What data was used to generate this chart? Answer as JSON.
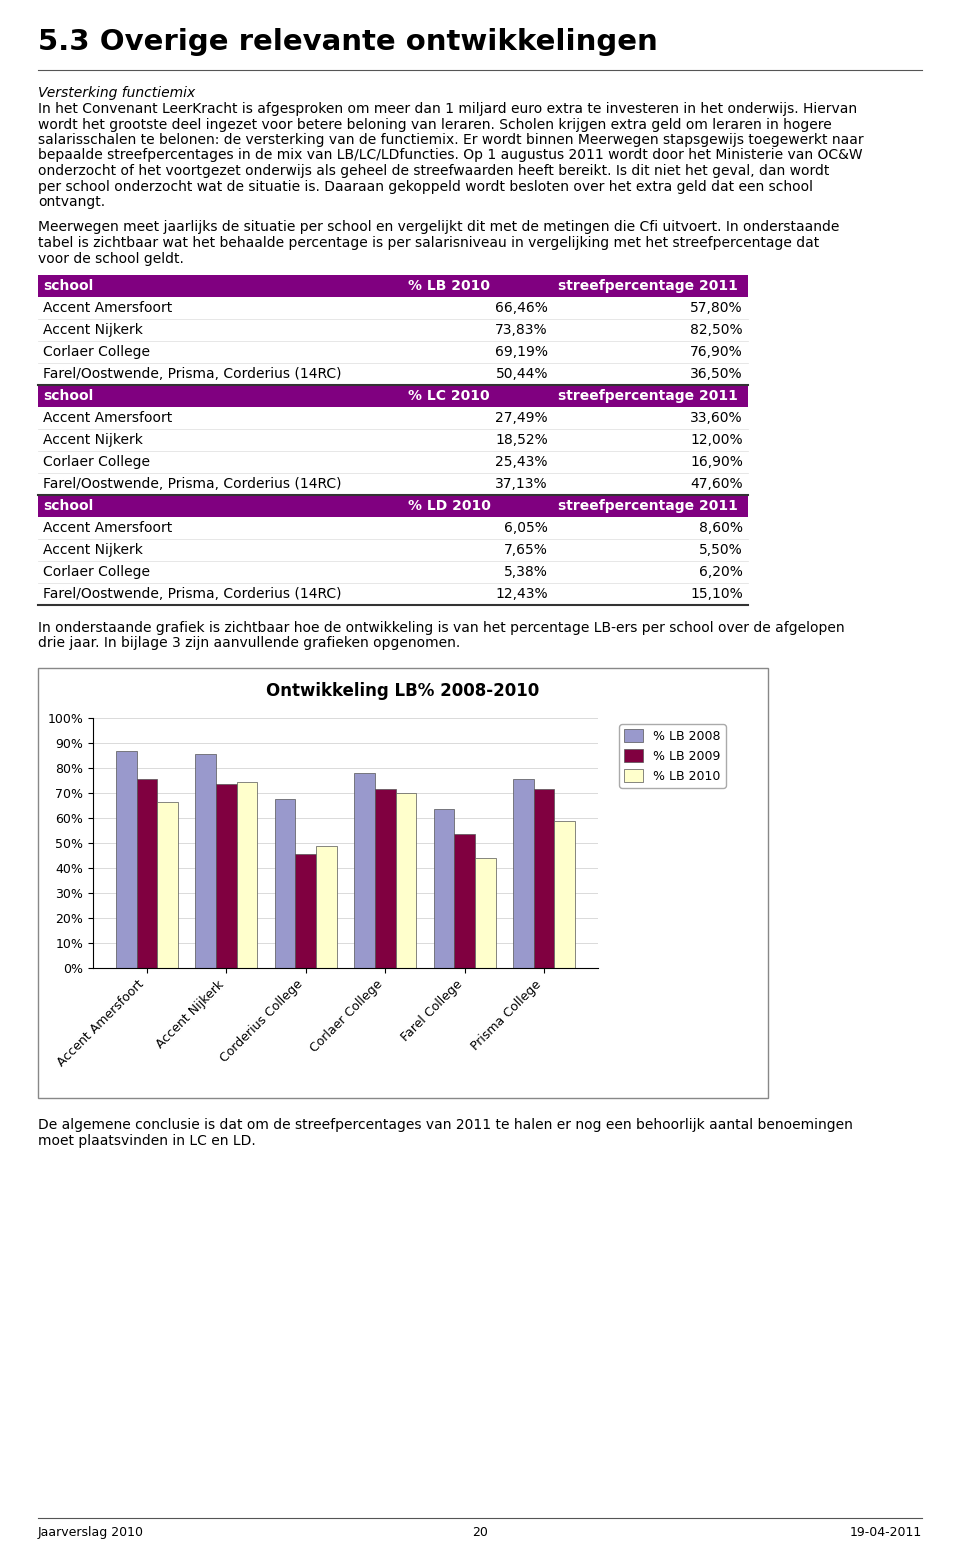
{
  "title": "5.3 Overige relevante ontwikkelingen",
  "section_italic": "Versterking functiemix",
  "paragraph1": "In het Convenant LeerKracht is afgesproken om meer dan 1 miljard euro extra te investeren in het onderwijs. Hiervan wordt het grootste deel ingezet voor betere beloning van leraren. Scholen krijgen extra geld om leraren in hogere salarisschalen te belonen: de versterking van de functiemix. Er wordt binnen Meerwegen stapsgewijs toegewerkt naar bepaalde streefpercentages in de mix van LB/LC/LDfuncties. Op 1 augustus 2011 wordt door het Ministerie van OC&W onderzocht of het voortgezet onderwijs als geheel de streefwaarden heeft bereikt. Is dit niet het geval, dan wordt per school onderzocht wat de situatie is. Daaraan gekoppeld wordt besloten over het extra geld dat een school ontvangt.",
  "paragraph2": "Meerwegen meet jaarlijks de situatie per school en vergelijkt dit met de metingen die Cfi uitvoert.\nIn onderstaande tabel is zichtbaar wat het behaalde percentage is per salarisniveau in vergelijking met\nhet streefpercentage dat voor de school geldt.",
  "tables": [
    {
      "col1": "school",
      "col2": "% LB 2010",
      "col3": "streefpercentage 2011",
      "rows": [
        [
          "Accent Amersfoort",
          "66,46%",
          "57,80%"
        ],
        [
          "Accent Nijkerk",
          "73,83%",
          "82,50%"
        ],
        [
          "Corlaer College",
          "69,19%",
          "76,90%"
        ],
        [
          "Farel/Oostwende, Prisma, Corderius (14RC)",
          "50,44%",
          "36,50%"
        ]
      ]
    },
    {
      "col1": "school",
      "col2": "% LC 2010",
      "col3": "streefpercentage 2011",
      "rows": [
        [
          "Accent Amersfoort",
          "27,49%",
          "33,60%"
        ],
        [
          "Accent Nijkerk",
          "18,52%",
          "12,00%"
        ],
        [
          "Corlaer College",
          "25,43%",
          "16,90%"
        ],
        [
          "Farel/Oostwende, Prisma, Corderius (14RC)",
          "37,13%",
          "47,60%"
        ]
      ]
    },
    {
      "col1": "school",
      "col2": "% LD 2010",
      "col3": "streefpercentage 2011",
      "rows": [
        [
          "Accent Amersfoort",
          "6,05%",
          "8,60%"
        ],
        [
          "Accent Nijkerk",
          "7,65%",
          "5,50%"
        ],
        [
          "Corlaer College",
          "5,38%",
          "6,20%"
        ],
        [
          "Farel/Oostwende, Prisma, Corderius (14RC)",
          "12,43%",
          "15,10%"
        ]
      ]
    }
  ],
  "paragraph3": "In onderstaande grafiek is zichtbaar hoe de ontwikkeling is van het percentage LB-ers per school over\nde afgelopen drie jaar. In bijlage 3 zijn aanvullende grafieken opgenomen.",
  "chart_title": "Ontwikkeling LB% 2008-2010",
  "chart_categories": [
    "Accent Amersfoort",
    "Accent Nijkerk",
    "Corderius College",
    "Corlaer College",
    "Farel College",
    "Prisma College"
  ],
  "chart_series": {
    "% LB 2008": [
      0.87,
      0.855,
      0.675,
      0.78,
      0.635,
      0.755
    ],
    "% LB 2009": [
      0.755,
      0.735,
      0.455,
      0.715,
      0.535,
      0.715
    ],
    "% LB 2010": [
      0.665,
      0.745,
      0.49,
      0.7,
      0.44,
      0.59
    ]
  },
  "chart_colors": [
    "#9999cc",
    "#800040",
    "#ffffcc"
  ],
  "paragraph4": "De algemene conclusie is dat om de streefpercentages van 2011 te halen er nog een behoorlijk aantal\nbenoemingen moet plaatsvinden in LC en LD.",
  "footer_left": "Jaarverslag 2010",
  "footer_center": "20",
  "footer_right": "19-04-2011"
}
